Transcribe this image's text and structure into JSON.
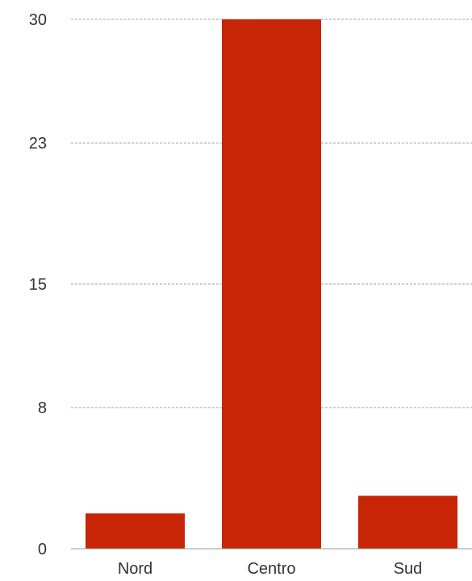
{
  "chart_data": {
    "type": "bar",
    "categories": [
      "Nord",
      "Centro",
      "Sud"
    ],
    "values": [
      2,
      30,
      3
    ],
    "y_ticks": [
      0,
      8,
      15,
      23,
      30
    ],
    "ylim": [
      0,
      30
    ],
    "grid": true,
    "legend": "none",
    "title": "",
    "xlabel": "",
    "ylabel": "",
    "bar_color": "#c82506"
  }
}
